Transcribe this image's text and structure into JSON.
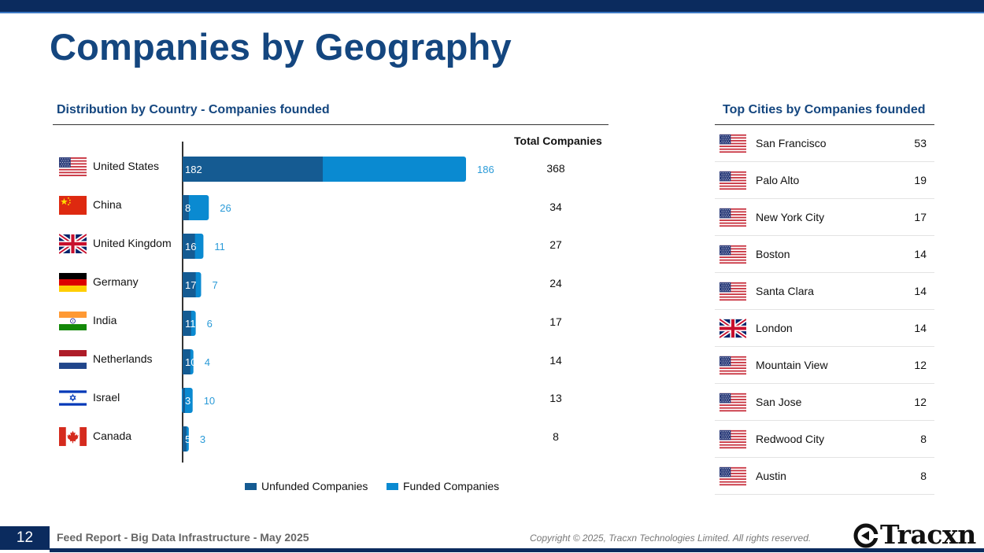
{
  "page": {
    "title": "Companies by Geography"
  },
  "left_section": {
    "title": "Distribution by Country - Companies founded",
    "total_header": "Total Companies"
  },
  "right_section": {
    "title": "Top Cities by Companies founded"
  },
  "colors": {
    "title": "#14467f",
    "unfunded": "#155b92",
    "funded": "#0a8ad1",
    "funded_label": "#2b9bd8",
    "header_bar": "#0b2b5e"
  },
  "chart_data": {
    "type": "bar",
    "orientation": "horizontal",
    "stacked": true,
    "categories": [
      "United States",
      "China",
      "United Kingdom",
      "Germany",
      "India",
      "Netherlands",
      "Israel",
      "Canada"
    ],
    "flags": [
      "us-flag-icon",
      "china-flag-icon",
      "uk-flag-icon",
      "germany-flag-icon",
      "india-flag-icon",
      "netherlands-flag-icon",
      "israel-flag-icon",
      "canada-flag-icon"
    ],
    "series": [
      {
        "name": "Unfunded Companies",
        "values": [
          182,
          8,
          16,
          17,
          11,
          10,
          3,
          5
        ]
      },
      {
        "name": "Funded Companies",
        "values": [
          186,
          26,
          11,
          7,
          6,
          4,
          10,
          3
        ]
      }
    ],
    "totals": [
      368,
      34,
      27,
      24,
      17,
      14,
      13,
      8
    ],
    "xlim": [
      0,
      400
    ],
    "legend": "bottom",
    "grid": false
  },
  "top_cities": [
    {
      "name": "San Francisco",
      "count": "53",
      "flag": "us-flag-icon"
    },
    {
      "name": "Palo Alto",
      "count": "19",
      "flag": "us-flag-icon"
    },
    {
      "name": "New York City",
      "count": "17",
      "flag": "us-flag-icon"
    },
    {
      "name": "Boston",
      "count": "14",
      "flag": "us-flag-icon"
    },
    {
      "name": "Santa Clara",
      "count": "14",
      "flag": "us-flag-icon"
    },
    {
      "name": "London",
      "count": "14",
      "flag": "uk-flag-icon"
    },
    {
      "name": "Mountain View",
      "count": "12",
      "flag": "us-flag-icon"
    },
    {
      "name": "San Jose",
      "count": "12",
      "flag": "us-flag-icon"
    },
    {
      "name": "Redwood City",
      "count": "8",
      "flag": "us-flag-icon"
    },
    {
      "name": "Austin",
      "count": "8",
      "flag": "us-flag-icon"
    }
  ],
  "footer": {
    "page_number": "12",
    "report_title": "Feed Report - Big Data Infrastructure - May 2025",
    "copyright": "Copyright © 2025, Tracxn Technologies Limited. All rights reserved.",
    "logo_text": "Tracxn"
  }
}
